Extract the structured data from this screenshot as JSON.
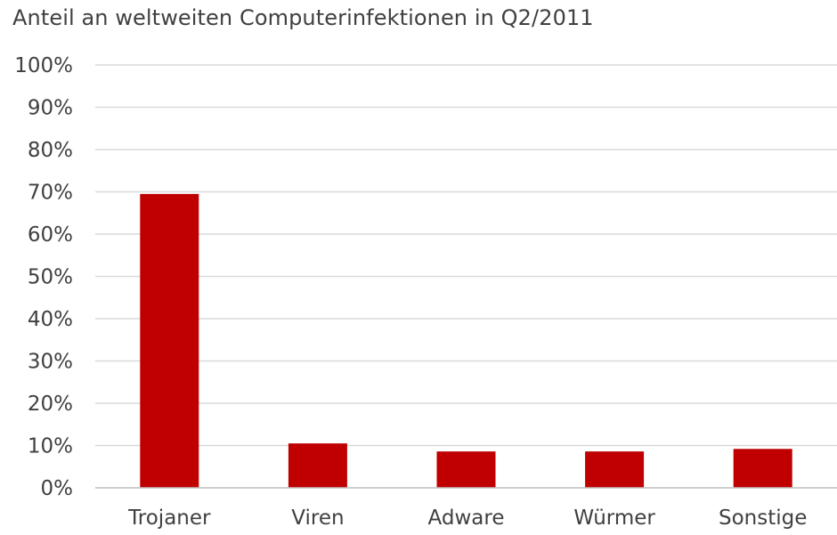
{
  "chart_data": {
    "type": "bar",
    "title": "Anteil an weltweiten Computerinfektionen in Q2/2011",
    "xlabel": "",
    "ylabel": "",
    "categories": [
      "Trojaner",
      "Viren",
      "Adware",
      "Würmer",
      "Sonstige"
    ],
    "values": [
      69.5,
      10.5,
      8.6,
      8.6,
      9.2
    ],
    "ylim": [
      0,
      100
    ],
    "yticks": [
      0,
      10,
      20,
      30,
      40,
      50,
      60,
      70,
      80,
      90,
      100
    ],
    "ytick_labels": [
      "0%",
      "10%",
      "20%",
      "30%",
      "40%",
      "50%",
      "60%",
      "70%",
      "80%",
      "90%",
      "100%"
    ],
    "grid": true,
    "legend": "none",
    "bar_color": "#c00000"
  }
}
